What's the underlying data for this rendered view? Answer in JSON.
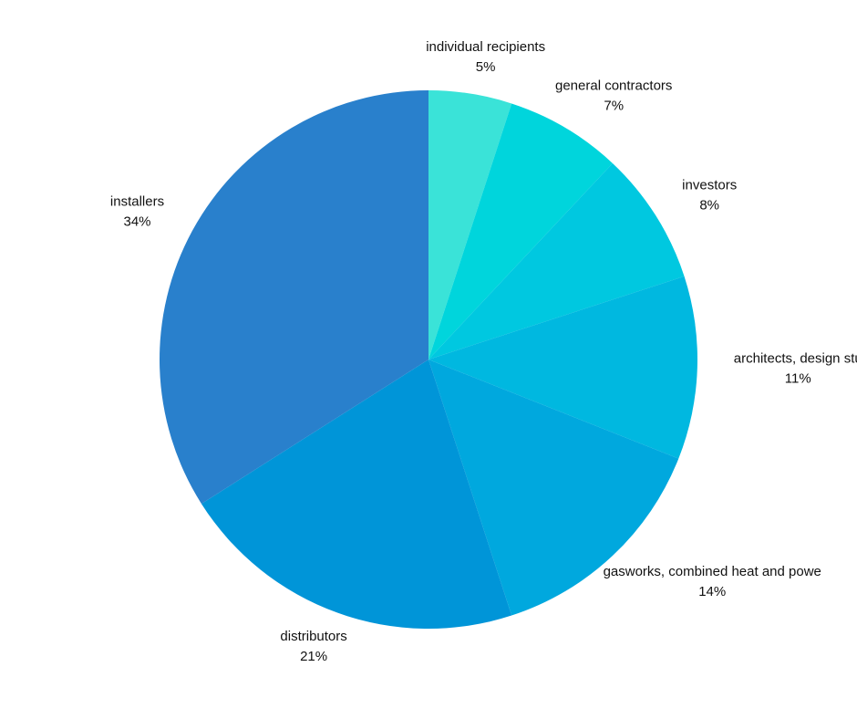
{
  "chart_data": {
    "type": "pie",
    "categories": [
      "individual recipients",
      "general contractors",
      "investors",
      "architects, design stu",
      "gasworks, combined heat and powe",
      "distributors",
      "installers"
    ],
    "values": [
      5,
      7,
      8,
      11,
      14,
      21,
      34
    ],
    "value_labels": [
      "5%",
      "7%",
      "8%",
      "11%",
      "14%",
      "21%",
      "34%"
    ],
    "colors": [
      "#3ae3d8",
      "#00d5dc",
      "#00c8e0",
      "#00b8e0",
      "#00a8de",
      "#0095d8",
      "#2980cc"
    ]
  }
}
